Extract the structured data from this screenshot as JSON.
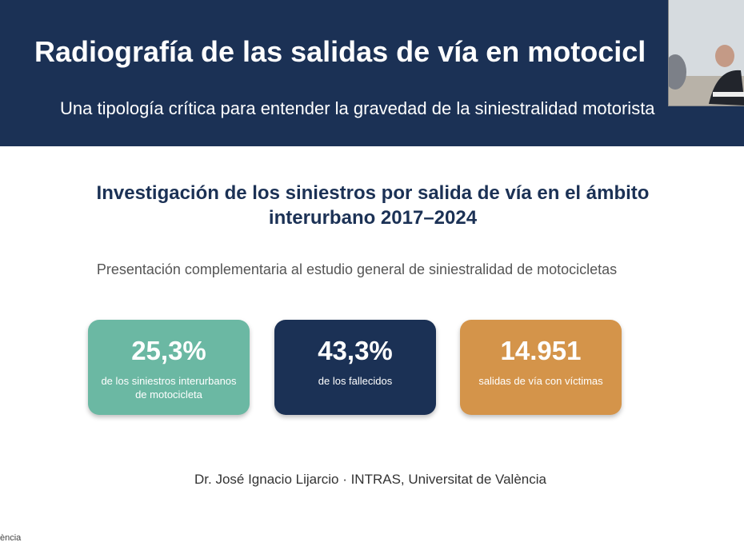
{
  "header": {
    "title": "Radiografía de las salidas de vía en motocicl",
    "subtitle": "Una tipología crítica para entender la gravedad de la siniestralidad motorista"
  },
  "heading": "Investigación de los siniestros por salida de vía en el ámbito interurbano 2017–2024",
  "subheading": "Presentación complementaria al estudio general de siniestralidad de motocicletas",
  "cards": [
    {
      "value": "25,3%",
      "label": "de los siniestros interurbanos de motocicleta"
    },
    {
      "value": "43,3%",
      "label": "de los fallecidos"
    },
    {
      "value": "14.951",
      "label": "salidas de vía con víctimas"
    }
  ],
  "author": "Dr. José Ignacio Lijarcio · INTRAS, Universitat de València",
  "footer": "ència"
}
